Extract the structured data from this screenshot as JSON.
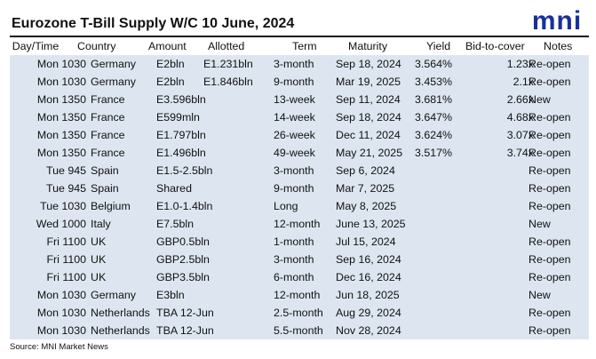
{
  "title": "Eurozone T-Bill Supply W/C 10 June, 2024",
  "logo_text": "mni",
  "logo_color": "#1a2f9c",
  "row_bg": "#dde6f0",
  "headers": [
    "Day/Time",
    "Country",
    "Amount",
    "Allotted",
    "Term",
    "Maturity",
    "Yield",
    "Bid-to-cover",
    "Notes"
  ],
  "rows": [
    [
      "Mon 1030",
      "Germany",
      "E2bln",
      "E1.231bln",
      "3-month",
      "Sep 18, 2024",
      "3.564%",
      "1.23x",
      "Re-open"
    ],
    [
      "Mon 1030",
      "Germany",
      "E2bln",
      "E1.846bln",
      "9-month",
      "Mar 19, 2025",
      "3.453%",
      "2.1x",
      "Re-open"
    ],
    [
      "Mon 1350",
      "France",
      "E3.596bln",
      "",
      "13-week",
      "Sep 11, 2024",
      "3.681%",
      "2.66x",
      "New"
    ],
    [
      "Mon 1350",
      "France",
      "E599mln",
      "",
      "14-week",
      "Sep 18, 2024",
      "3.647%",
      "4.68x",
      "Re-open"
    ],
    [
      "Mon 1350",
      "France",
      "E1.797bln",
      "",
      "26-week",
      "Dec 11, 2024",
      "3.624%",
      "3.07x",
      "Re-open"
    ],
    [
      "Mon 1350",
      "France",
      "E1.496bln",
      "",
      "49-week",
      "May 21, 2025",
      "3.517%",
      "3.74x",
      "Re-open"
    ],
    [
      "Tue 945",
      "Spain",
      "E1.5-2.5bln",
      "",
      "3-month",
      "Sep 6, 2024",
      "",
      "",
      "Re-open"
    ],
    [
      "Tue 945",
      "Spain",
      "Shared",
      "",
      "9-month",
      "Mar 7, 2025",
      "",
      "",
      "Re-open"
    ],
    [
      "Tue 1030",
      "Belgium",
      "E1.0-1.4bln",
      "",
      "Long",
      "May 8, 2025",
      "",
      "",
      "Re-open"
    ],
    [
      "Wed 1000",
      "Italy",
      "E7.5bln",
      "",
      "12-month",
      "June 13, 2025",
      "",
      "",
      "New"
    ],
    [
      "Fri 1100",
      "UK",
      "GBP0.5bln",
      "",
      "1-month",
      "Jul 15, 2024",
      "",
      "",
      "Re-open"
    ],
    [
      "Fri 1100",
      "UK",
      "GBP2.5bln",
      "",
      "3-month",
      "Sep 16, 2024",
      "",
      "",
      "Re-open"
    ],
    [
      "Fri 1100",
      "UK",
      "GBP3.5bln",
      "",
      "6-month",
      "Dec 16, 2024",
      "",
      "",
      "Re-open"
    ],
    [
      "Mon 1030",
      "Germany",
      "E3bln",
      "",
      "12-month",
      "Jun 18, 2025",
      "",
      "",
      "New"
    ],
    [
      "Mon 1030",
      "Netherlands",
      "TBA 12-Jun",
      "",
      "2.5-month",
      "Aug 29, 2024",
      "",
      "",
      "Re-open"
    ],
    [
      "Mon 1030",
      "Netherlands",
      "TBA 12-Jun",
      "",
      "5.5-month",
      "Nov 28, 2024",
      "",
      "",
      "Re-open"
    ]
  ],
  "source": "Source: MNI Market News"
}
